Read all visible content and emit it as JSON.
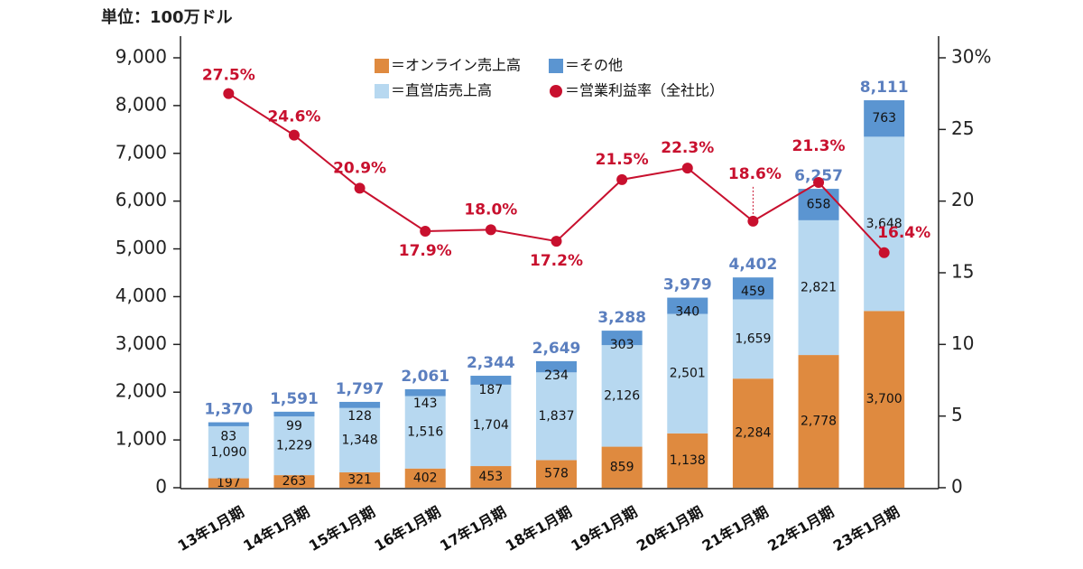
{
  "chart_data": {
    "type": "bar",
    "stacked": true,
    "unit_label": "単位：100万ドル",
    "categories": [
      "13年1月期",
      "14年1月期",
      "15年1月期",
      "16年1月期",
      "17年1月期",
      "18年1月期",
      "19年1月期",
      "20年1月期",
      "21年1月期",
      "22年1月期",
      "23年1月期"
    ],
    "series": [
      {
        "name": "＝オンライン売上高",
        "color": "#df8a3f",
        "values": [
          197,
          263,
          321,
          402,
          453,
          578,
          859,
          1138,
          2284,
          2778,
          3700
        ],
        "value_labels": [
          "197",
          "263",
          "321",
          "402",
          "453",
          "578",
          "859",
          "1,138",
          "2,284",
          "2,778",
          "3,700"
        ]
      },
      {
        "name": "＝直営店売上高",
        "color": "#b7d8f0",
        "values": [
          1090,
          1229,
          1348,
          1516,
          1704,
          1837,
          2126,
          2501,
          1659,
          2821,
          3648
        ],
        "value_labels": [
          "1,090",
          "1,229",
          "1,348",
          "1,516",
          "1,704",
          "1,837",
          "2,126",
          "2,501",
          "1,659",
          "2,821",
          "3,648"
        ]
      },
      {
        "name": "＝その他",
        "color": "#5b95d1",
        "values": [
          83,
          99,
          128,
          143,
          187,
          234,
          303,
          340,
          459,
          658,
          763
        ]
      },
      {
        "name": "＝営業利益率（全社比）",
        "type": "line",
        "axis": "y2",
        "color": "#c8102e",
        "values": [
          27.5,
          24.6,
          20.9,
          17.9,
          18.0,
          17.2,
          21.5,
          22.3,
          18.6,
          21.3,
          16.4
        ],
        "value_labels": [
          "27.5%",
          "24.6%",
          "20.9%",
          "17.9%",
          "18.0%",
          "17.2%",
          "21.5%",
          "22.3%",
          "18.6%",
          "21.3%",
          "16.4%"
        ]
      }
    ],
    "totals": [
      1370,
      1591,
      1797,
      2061,
      2344,
      2649,
      3288,
      3979,
      4402,
      6257,
      8111
    ],
    "total_labels": [
      "1,370",
      "1,591",
      "1,797",
      "2,061",
      "2,344",
      "2,649",
      "3,288",
      "3,979",
      "4,402",
      "6,257",
      "8,111"
    ],
    "total_color": "#5b7fbf",
    "ylim": [
      0,
      9000
    ],
    "yticks": [
      0,
      {
        "value": 1000,
        "label": "1,000"
      },
      {
        "value": 2000,
        "label": "2,000"
      },
      {
        "value": 3000,
        "label": "3,000"
      },
      {
        "value": 4000,
        "label": "4,000"
      },
      {
        "value": 5000,
        "label": "5,000"
      },
      {
        "value": 6000,
        "label": "6,000"
      },
      {
        "value": 7000,
        "label": "7,000"
      },
      {
        "value": 8000,
        "label": "8,000"
      },
      {
        "value": 9000,
        "label": "9,000"
      }
    ],
    "y2lim": [
      0,
      30
    ],
    "y2ticks": [
      0,
      5,
      10,
      15,
      20,
      25,
      {
        "value": 30,
        "label": "30%"
      }
    ]
  }
}
